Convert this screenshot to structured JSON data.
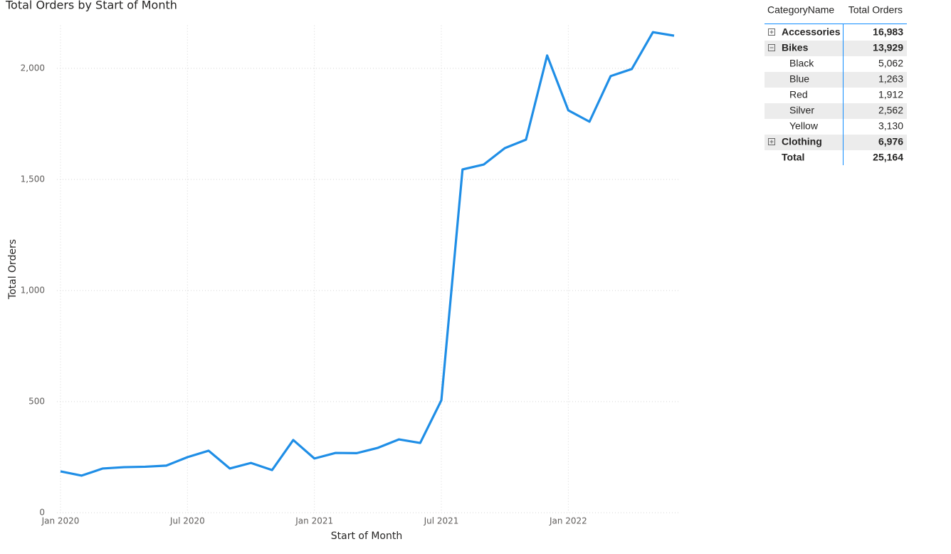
{
  "chart_data": {
    "type": "line",
    "title": "Total Orders by Start of Month",
    "x_label": "Start of Month",
    "y_label": "Total Orders",
    "x": [
      "2020-01",
      "2020-02",
      "2020-03",
      "2020-04",
      "2020-05",
      "2020-06",
      "2020-07",
      "2020-08",
      "2020-09",
      "2020-10",
      "2020-11",
      "2020-12",
      "2021-01",
      "2021-02",
      "2021-03",
      "2021-04",
      "2021-05",
      "2021-06",
      "2021-07",
      "2021-08",
      "2021-09",
      "2021-10",
      "2021-11",
      "2021-12",
      "2022-01",
      "2022-02",
      "2022-03",
      "2022-04",
      "2022-05",
      "2022-06"
    ],
    "series": [
      {
        "name": "Total Orders",
        "color": "#1f8ee6",
        "values": [
          186,
          167,
          199,
          205,
          207,
          212,
          250,
          279,
          199,
          224,
          192,
          327,
          244,
          269,
          268,
          292,
          330,
          314,
          506,
          1545,
          1567,
          1641,
          1679,
          2058,
          1811,
          1760,
          1965,
          1997,
          2163,
          2147
        ]
      }
    ],
    "xlim": [
      "2020-01",
      "2022-06"
    ],
    "xticks": [
      {
        "value": "2020-01",
        "label": "Jan 2020"
      },
      {
        "value": "2020-07",
        "label": "Jul 2020"
      },
      {
        "value": "2021-01",
        "label": "Jan 2021"
      },
      {
        "value": "2021-07",
        "label": "Jul 2021"
      },
      {
        "value": "2022-01",
        "label": "Jan 2022"
      }
    ],
    "ylim": [
      0,
      2200
    ],
    "yticks": [
      0,
      500,
      {
        "value": 1000,
        "label": "1,000"
      },
      {
        "value": 1500,
        "label": "1,500"
      },
      {
        "value": 2000,
        "label": "2,000"
      }
    ],
    "grid": true
  },
  "table": {
    "header": [
      "CategoryName",
      "Total Orders"
    ],
    "rows": [
      {
        "label": "Accessories",
        "value": "16,983",
        "level": 0,
        "expanded": false
      },
      {
        "label": "Bikes",
        "value": "13,929",
        "level": 0,
        "expanded": true
      },
      {
        "label": "Black",
        "value": "5,062",
        "level": 1
      },
      {
        "label": "Blue",
        "value": "1,263",
        "level": 1
      },
      {
        "label": "Red",
        "value": "1,912",
        "level": 1
      },
      {
        "label": "Silver",
        "value": "2,562",
        "level": 1
      },
      {
        "label": "Yellow",
        "value": "3,130",
        "level": 1
      },
      {
        "label": "Clothing",
        "value": "6,976",
        "level": 0,
        "expanded": false
      }
    ],
    "total": {
      "label": "Total",
      "value": "25,164"
    }
  }
}
